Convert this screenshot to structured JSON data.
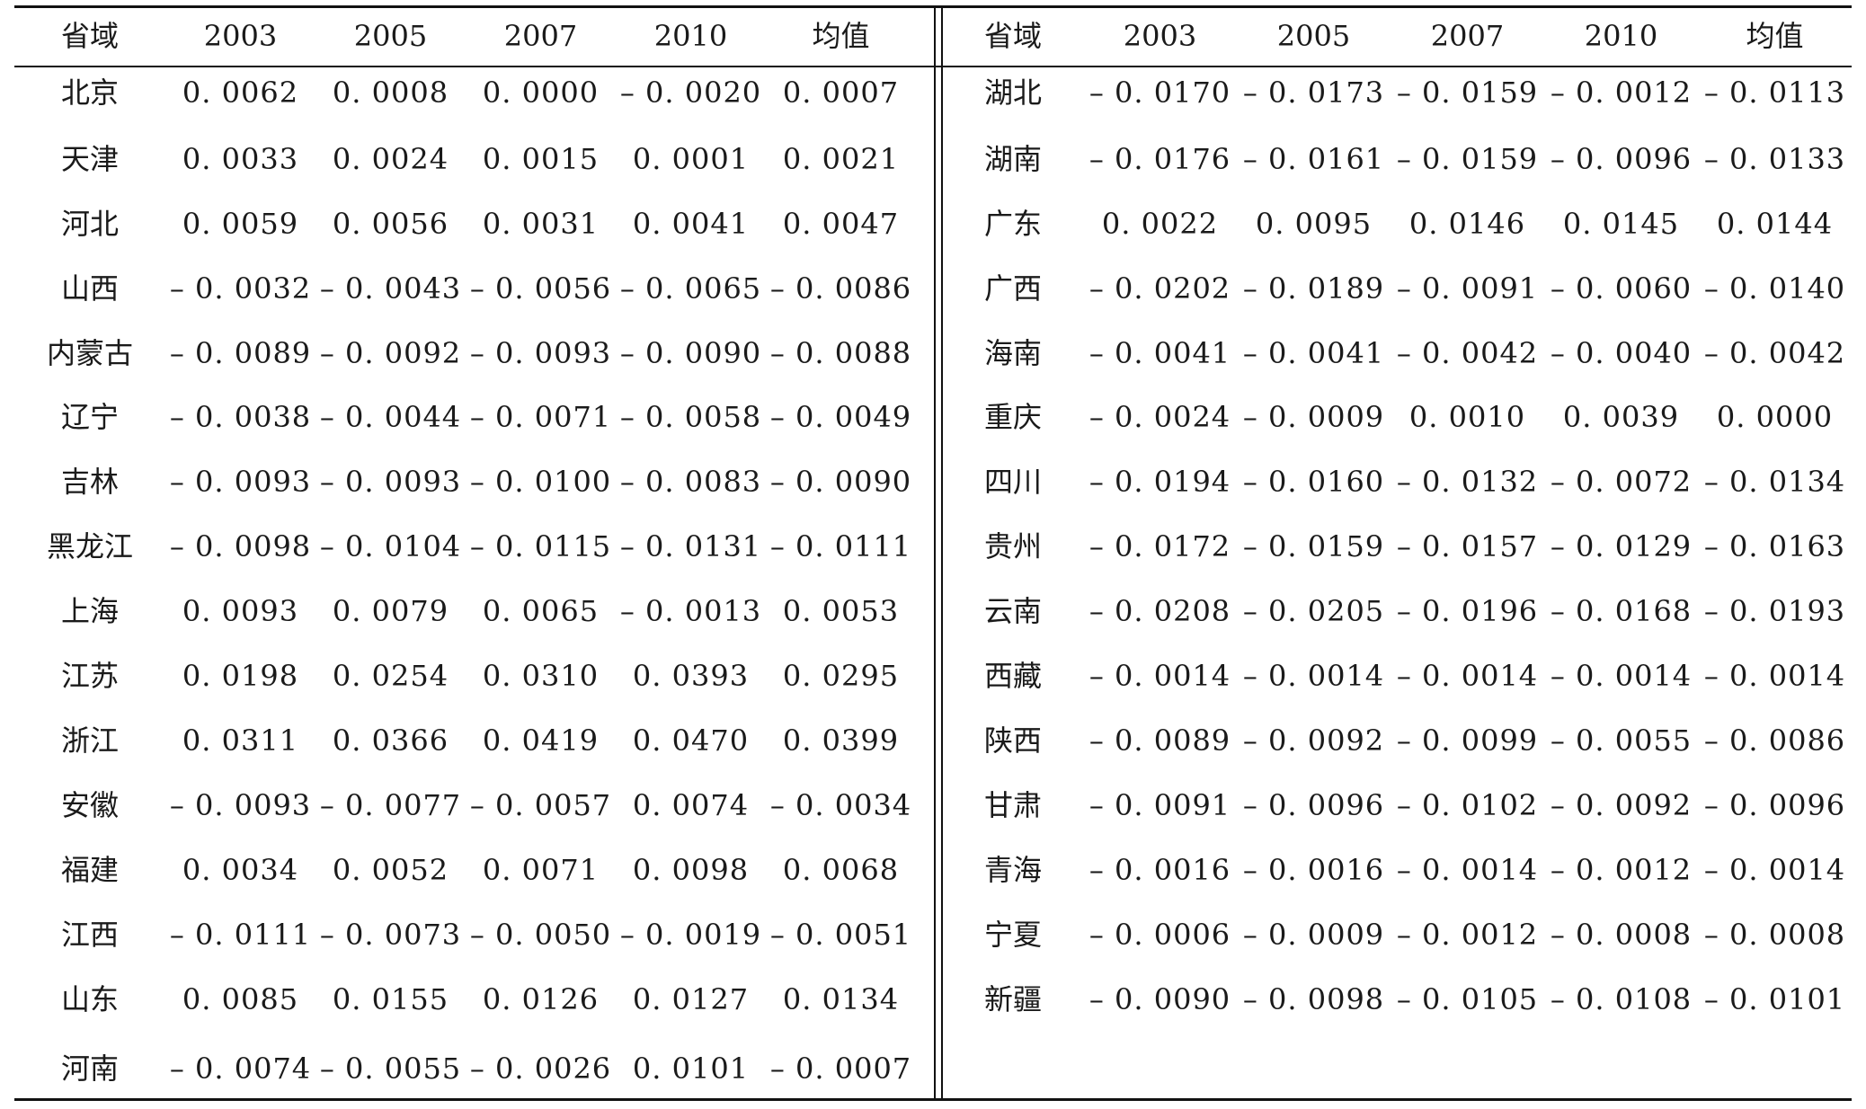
{
  "headers": [
    "省域",
    "2003",
    "2005",
    "2007",
    "2010",
    "均值"
  ],
  "left_rows": [
    [
      "北京",
      "0. 0062",
      "0. 0008",
      "0. 0000",
      "– 0. 0020",
      "0. 0007"
    ],
    [
      "天津",
      "0. 0033",
      "0. 0024",
      "0. 0015",
      "0. 0001",
      "0. 0021"
    ],
    [
      "河北",
      "0. 0059",
      "0. 0056",
      "0. 0031",
      "0. 0041",
      "0. 0047"
    ],
    [
      "山西",
      "– 0. 0032",
      "– 0. 0043",
      "– 0. 0056",
      "– 0. 0065",
      "– 0. 0086"
    ],
    [
      "内蒙古",
      "– 0. 0089",
      "– 0. 0092",
      "– 0. 0093",
      "– 0. 0090",
      "– 0. 0088"
    ],
    [
      "辽宁",
      "– 0. 0038",
      "– 0. 0044",
      "– 0. 0071",
      "– 0. 0058",
      "– 0. 0049"
    ],
    [
      "吉林",
      "– 0. 0093",
      "– 0. 0093",
      "– 0. 0100",
      "– 0. 0083",
      "– 0. 0090"
    ],
    [
      "黑龙江",
      "– 0. 0098",
      "– 0. 0104",
      "– 0. 0115",
      "– 0. 0131",
      "– 0. 0111"
    ],
    [
      "上海",
      "0. 0093",
      "0. 0079",
      "0. 0065",
      "– 0. 0013",
      "0. 0053"
    ],
    [
      "江苏",
      "0. 0198",
      "0. 0254",
      "0. 0310",
      "0. 0393",
      "0. 0295"
    ],
    [
      "浙江",
      "0. 0311",
      "0. 0366",
      "0. 0419",
      "0. 0470",
      "0. 0399"
    ],
    [
      "安徽",
      "– 0. 0093",
      "– 0. 0077",
      "– 0. 0057",
      "0. 0074",
      "– 0. 0034"
    ],
    [
      "福建",
      "0. 0034",
      "0. 0052",
      "0. 0071",
      "0. 0098",
      "0. 0068"
    ],
    [
      "江西",
      "– 0. 0111",
      "– 0. 0073",
      "– 0. 0050",
      "– 0. 0019",
      "– 0. 0051"
    ],
    [
      "山东",
      "0. 0085",
      "0. 0155",
      "0. 0126",
      "0. 0127",
      "0. 0134"
    ],
    [
      "河南",
      "– 0. 0074",
      "– 0. 0055",
      "– 0. 0026",
      "0. 0101",
      "– 0. 0007"
    ]
  ],
  "right_rows": [
    [
      "湖北",
      "– 0. 0170",
      "– 0. 0173",
      "– 0. 0159",
      "– 0. 0012",
      "– 0. 0113"
    ],
    [
      "湖南",
      "– 0. 0176",
      "– 0. 0161",
      "– 0. 0159",
      "– 0. 0096",
      "– 0. 0133"
    ],
    [
      "广东",
      "0. 0022",
      "0. 0095",
      "0. 0146",
      "0. 0145",
      "0. 0144"
    ],
    [
      "广西",
      "– 0. 0202",
      "– 0. 0189",
      "– 0. 0091",
      "– 0. 0060",
      "– 0. 0140"
    ],
    [
      "海南",
      "– 0. 0041",
      "– 0. 0041",
      "– 0. 0042",
      "– 0. 0040",
      "– 0. 0042"
    ],
    [
      "重庆",
      "– 0. 0024",
      "– 0. 0009",
      "0. 0010",
      "0. 0039",
      "0. 0000"
    ],
    [
      "四川",
      "– 0. 0194",
      "– 0. 0160",
      "– 0. 0132",
      "– 0. 0072",
      "– 0. 0134"
    ],
    [
      "贵州",
      "– 0. 0172",
      "– 0. 0159",
      "– 0. 0157",
      "– 0. 0129",
      "– 0. 0163"
    ],
    [
      "云南",
      "– 0. 0208",
      "– 0. 0205",
      "– 0. 0196",
      "– 0. 0168",
      "– 0. 0193"
    ],
    [
      "西藏",
      "– 0. 0014",
      "– 0. 0014",
      "– 0. 0014",
      "– 0. 0014",
      "– 0. 0014"
    ],
    [
      "陕西",
      "– 0. 0089",
      "– 0. 0092",
      "– 0. 0099",
      "– 0. 0055",
      "– 0. 0086"
    ],
    [
      "甘肃",
      "– 0. 0091",
      "– 0. 0096",
      "– 0. 0102",
      "– 0. 0092",
      "– 0. 0096"
    ],
    [
      "青海",
      "– 0. 0016",
      "– 0. 0016",
      "– 0. 0014",
      "– 0. 0012",
      "– 0. 0014"
    ],
    [
      "宁夏",
      "– 0. 0006",
      "– 0. 0009",
      "– 0. 0012",
      "– 0. 0008",
      "– 0. 0008"
    ],
    [
      "新疆",
      "– 0. 0090",
      "– 0. 0098",
      "– 0. 0105",
      "– 0. 0108",
      "– 0. 0101"
    ]
  ]
}
